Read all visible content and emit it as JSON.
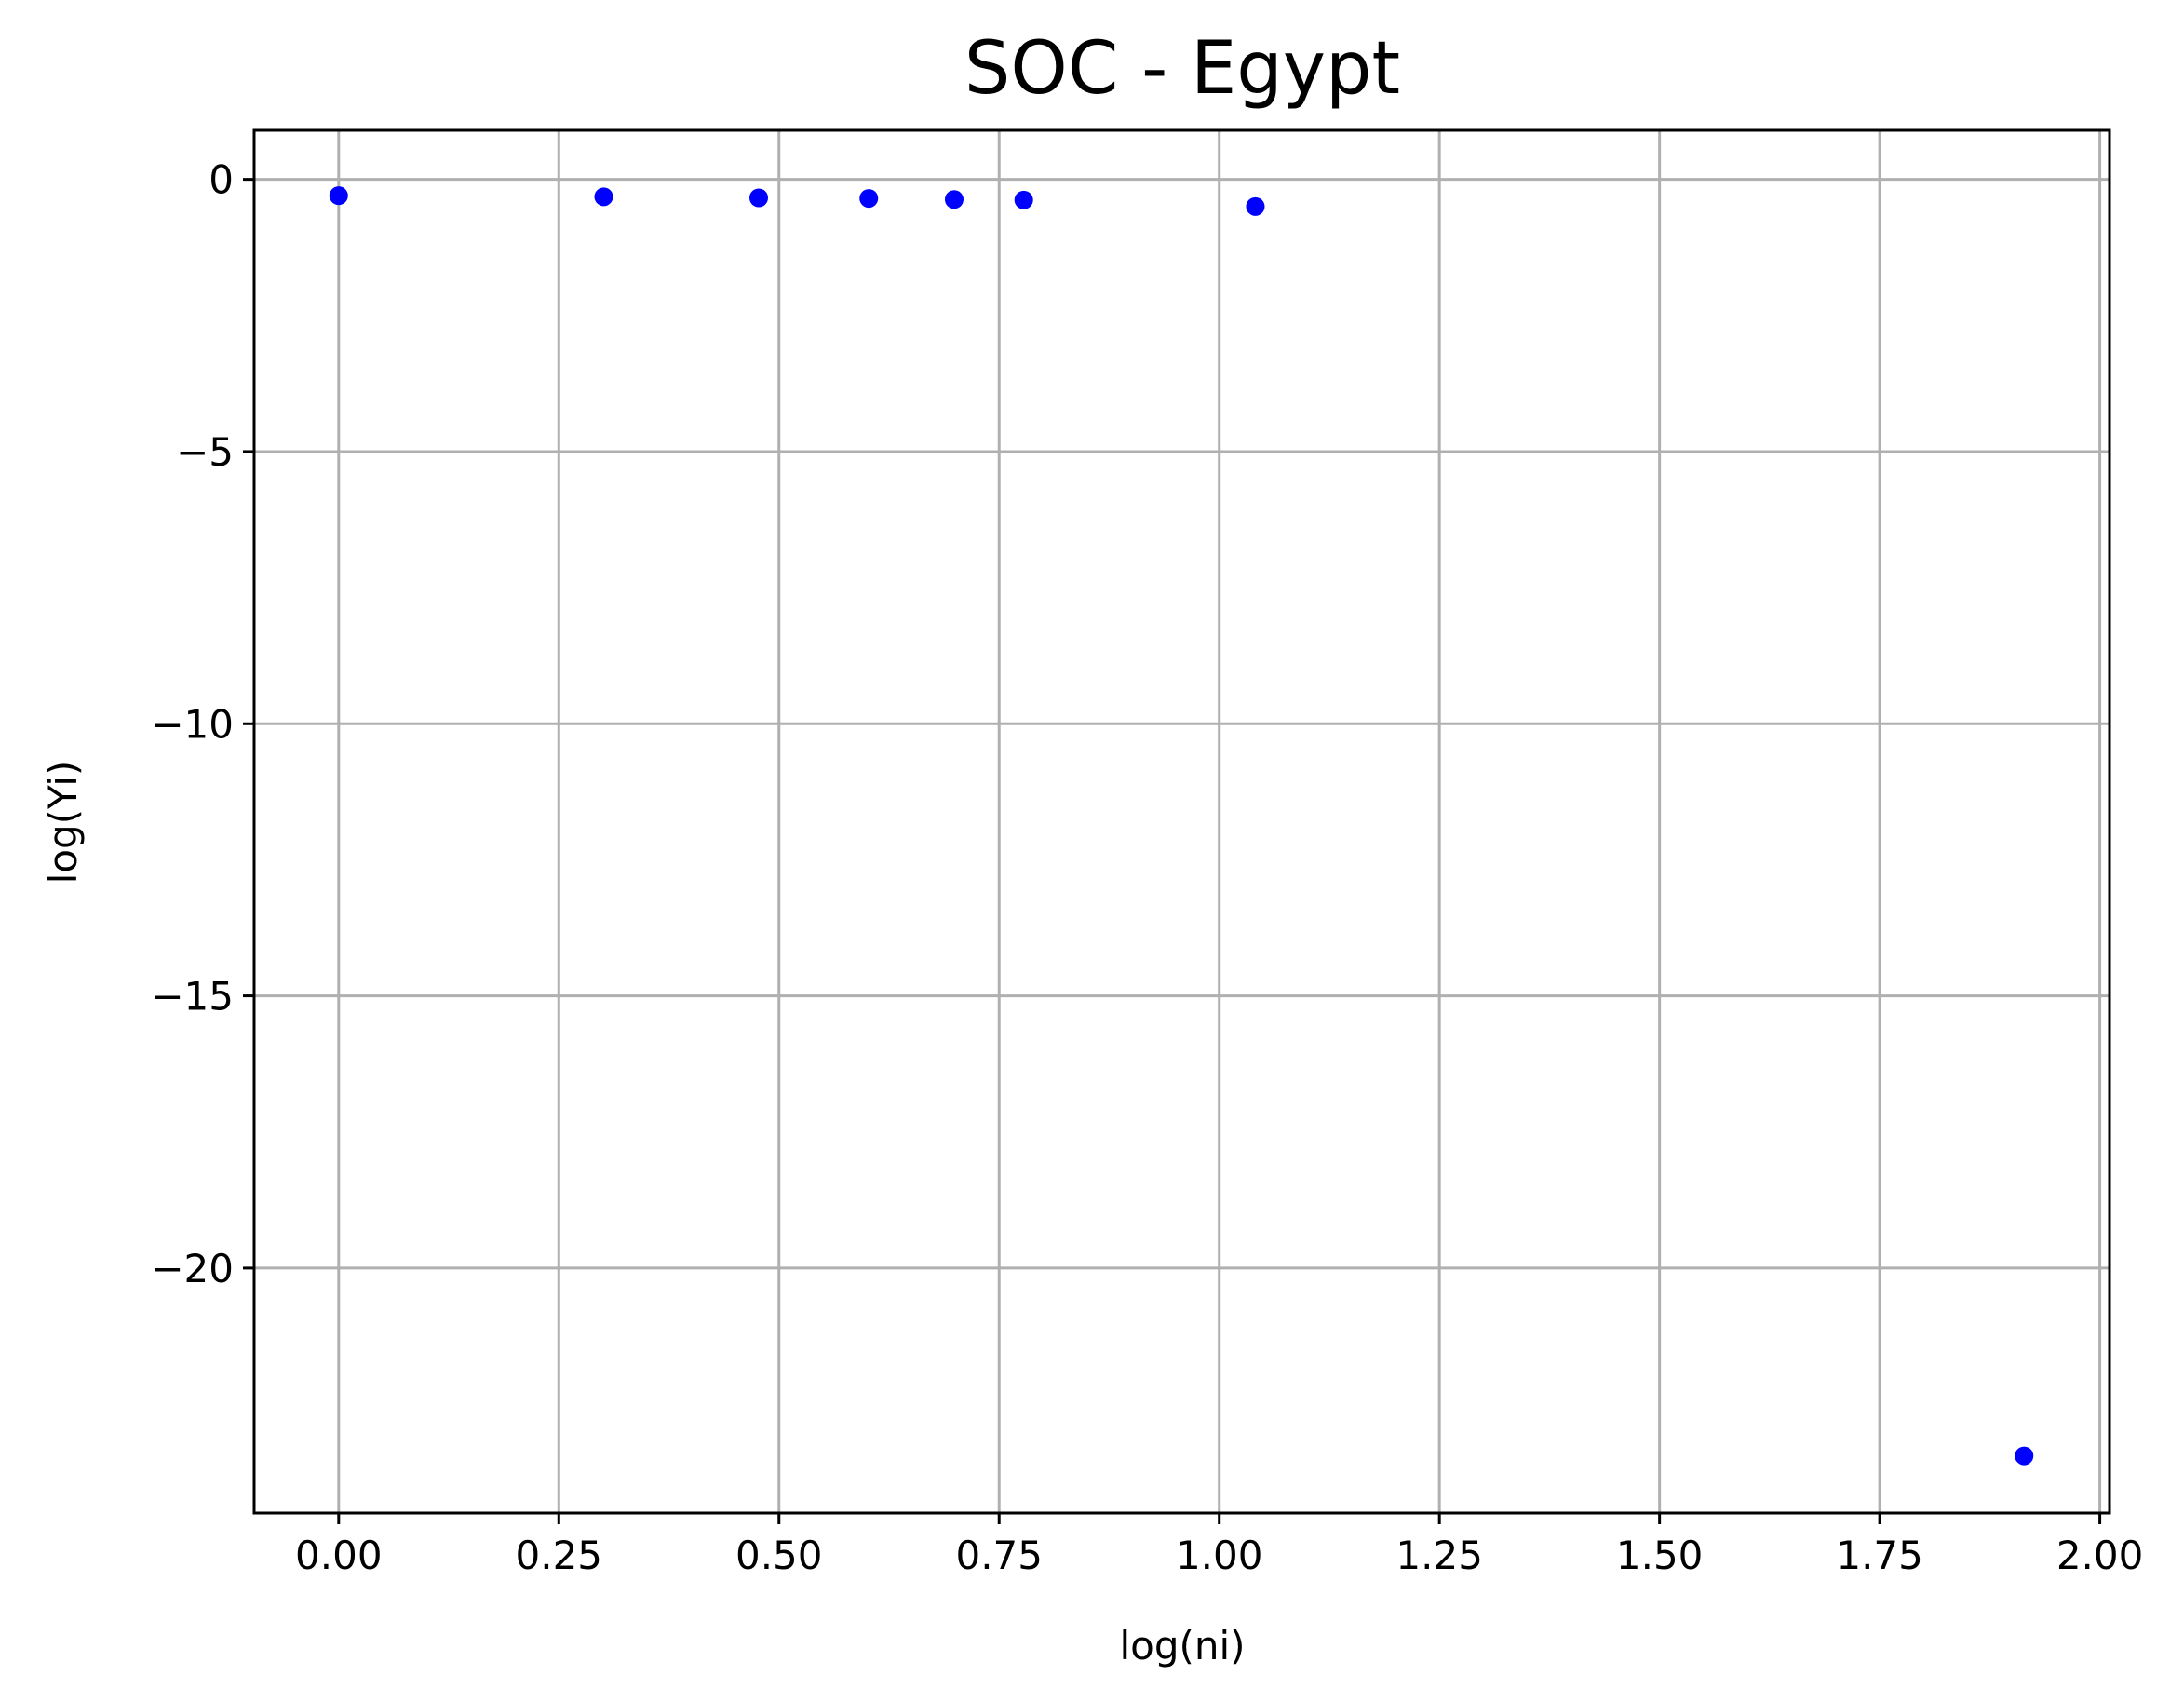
{
  "chart_data": {
    "type": "scatter",
    "title": "SOC - Egypt",
    "xlabel": "log(ni)",
    "ylabel": "log(Yi)",
    "xlim": [
      -0.096,
      2.011
    ],
    "ylim": [
      -24.5,
      0.9
    ],
    "xticks": [
      0.0,
      0.25,
      0.5,
      0.75,
      1.0,
      1.25,
      1.5,
      1.75,
      2.0
    ],
    "xtick_labels": [
      "0.00",
      "0.25",
      "0.50",
      "0.75",
      "1.00",
      "1.25",
      "1.50",
      "1.75",
      "2.00"
    ],
    "yticks": [
      0,
      -5,
      -10,
      -15,
      -20
    ],
    "ytick_labels": [
      "0",
      "−5",
      "−10",
      "−15",
      "−20"
    ],
    "grid": true,
    "marker_color": "#0000ff",
    "points": [
      {
        "x": 0.0,
        "y": -0.3
      },
      {
        "x": 0.301,
        "y": -0.32
      },
      {
        "x": 0.477,
        "y": -0.34
      },
      {
        "x": 0.602,
        "y": -0.35
      },
      {
        "x": 0.699,
        "y": -0.37
      },
      {
        "x": 0.778,
        "y": -0.38
      },
      {
        "x": 1.041,
        "y": -0.5
      },
      {
        "x": 1.914,
        "y": -23.45
      }
    ]
  }
}
